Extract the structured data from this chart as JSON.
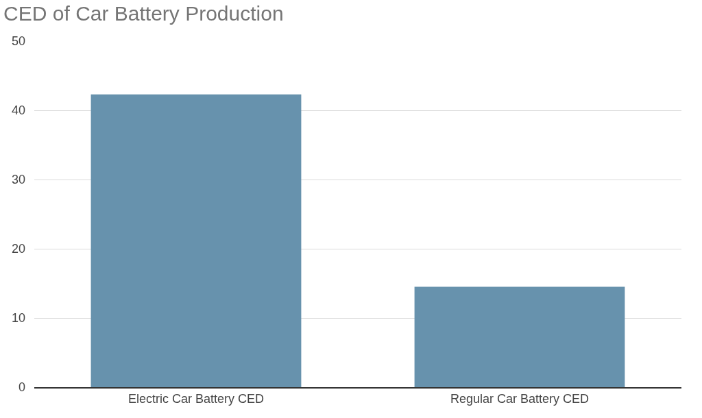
{
  "chart_data": {
    "type": "bar",
    "title": "CED of Car Battery Production",
    "categories": [
      "Electric Car Battery CED",
      "Regular Car Battery CED"
    ],
    "values": [
      42.3,
      14.5
    ],
    "color": "#6792ad",
    "ylim": [
      0,
      50
    ],
    "yticks": [
      0,
      10,
      20,
      30,
      40,
      50
    ],
    "grid": "y",
    "legend": false
  }
}
